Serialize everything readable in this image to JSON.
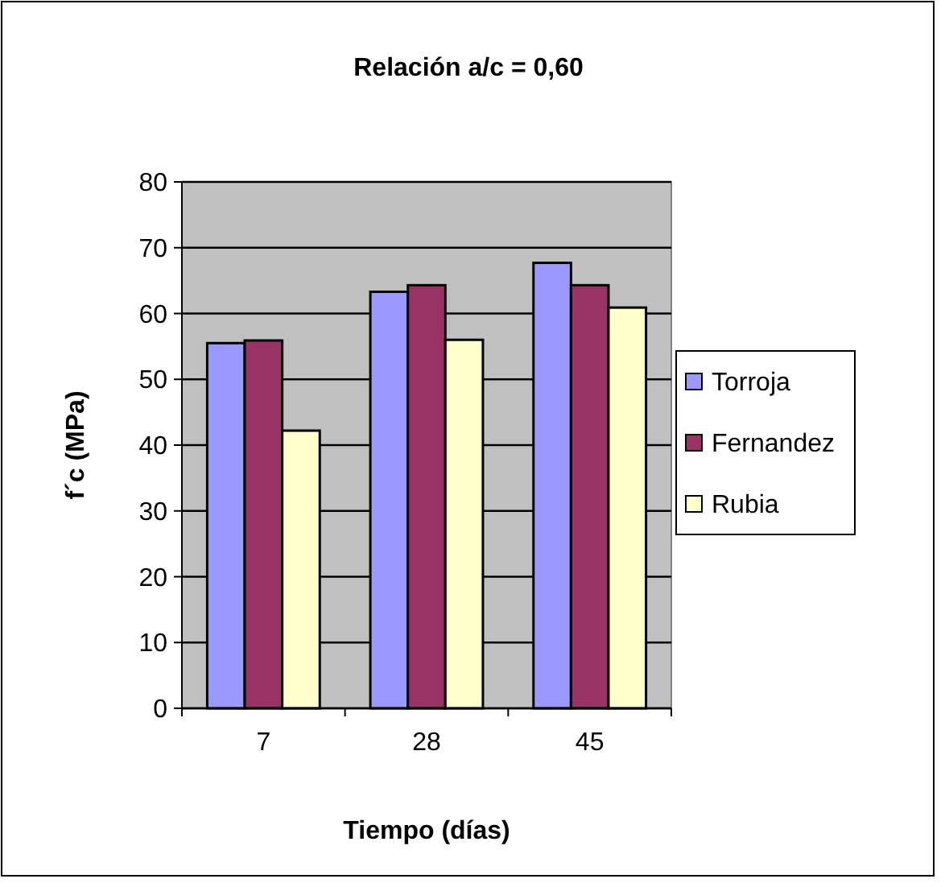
{
  "chart_data": {
    "type": "bar",
    "title": "Relación a/c = 0,60",
    "xlabel": "Tiempo (días)",
    "ylabel": "f´c (MPa)",
    "categories": [
      "7",
      "28",
      "45"
    ],
    "series": [
      {
        "name": "Torroja",
        "color": "#9999ff",
        "values": [
          55.5,
          63.3,
          67.7
        ]
      },
      {
        "name": "Fernandez",
        "color": "#993366",
        "values": [
          55.9,
          64.3,
          64.3
        ]
      },
      {
        "name": "Rubia",
        "color": "#ffffcc",
        "values": [
          42.2,
          56.0,
          60.9
        ]
      }
    ],
    "ylim": [
      0,
      80
    ],
    "yticks": [
      0,
      10,
      20,
      30,
      40,
      50,
      60,
      70,
      80
    ],
    "grid": "y",
    "legend": "right"
  }
}
